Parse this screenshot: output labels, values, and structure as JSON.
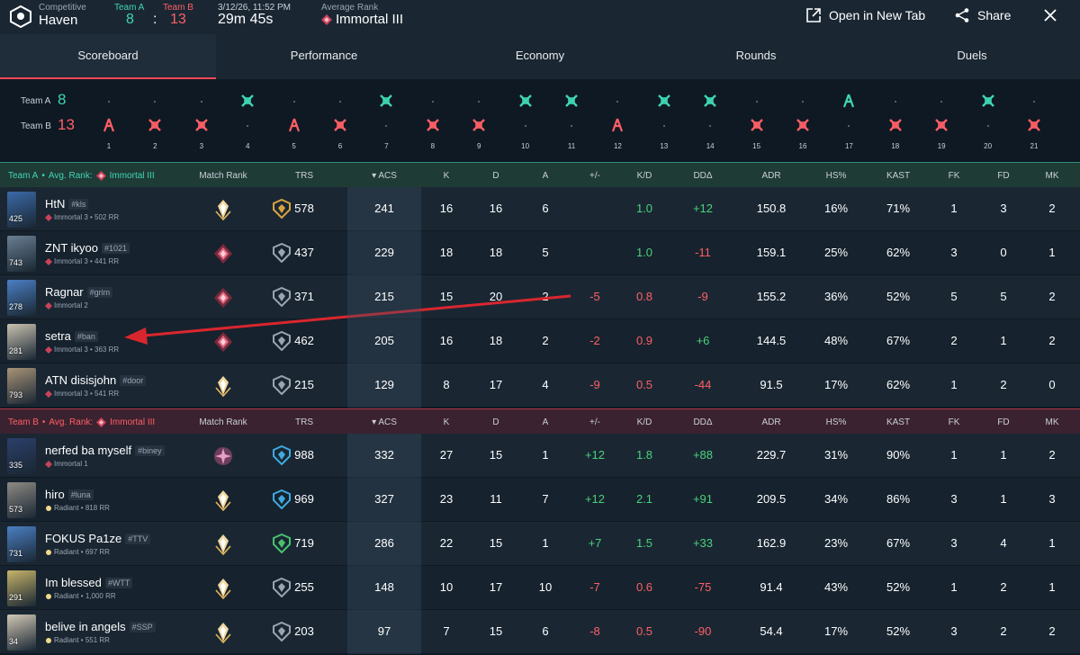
{
  "header": {
    "mode": "Competitive",
    "map": "Haven",
    "team_a_label": "Team A",
    "team_b_label": "Team B",
    "team_a_score": "8",
    "score_sep": ":",
    "team_b_score": "13",
    "datetime": "3/12/26, 11:52 PM",
    "duration": "29m 45s",
    "avg_rank_label": "Average Rank",
    "avg_rank": "Immortal III",
    "open_new_tab": "Open in New Tab",
    "share": "Share"
  },
  "tabs": [
    "Scoreboard",
    "Performance",
    "Economy",
    "Rounds",
    "Duels"
  ],
  "timeline": {
    "team_a_label": "Team A",
    "team_a_score": "8",
    "team_b_label": "Team B",
    "team_b_score": "13",
    "rounds": [
      {
        "n": "1",
        "winner": "B",
        "type": "spike"
      },
      {
        "n": "2",
        "winner": "B",
        "type": "elim"
      },
      {
        "n": "3",
        "winner": "B",
        "type": "elim"
      },
      {
        "n": "4",
        "winner": "A",
        "type": "elim"
      },
      {
        "n": "5",
        "winner": "B",
        "type": "spike"
      },
      {
        "n": "6",
        "winner": "B",
        "type": "elim"
      },
      {
        "n": "7",
        "winner": "A",
        "type": "elim"
      },
      {
        "n": "8",
        "winner": "B",
        "type": "elim"
      },
      {
        "n": "9",
        "winner": "B",
        "type": "elim"
      },
      {
        "n": "10",
        "winner": "A",
        "type": "elim"
      },
      {
        "n": "11",
        "winner": "A",
        "type": "elim"
      },
      {
        "n": "12",
        "winner": "B",
        "type": "spike"
      },
      {
        "n": "13",
        "winner": "A",
        "type": "elim"
      },
      {
        "n": "14",
        "winner": "A",
        "type": "elim"
      },
      {
        "n": "15",
        "winner": "B",
        "type": "elim"
      },
      {
        "n": "16",
        "winner": "B",
        "type": "elim"
      },
      {
        "n": "17",
        "winner": "A",
        "type": "spike"
      },
      {
        "n": "18",
        "winner": "B",
        "type": "elim"
      },
      {
        "n": "19",
        "winner": "B",
        "type": "elim"
      },
      {
        "n": "20",
        "winner": "A",
        "type": "elim"
      },
      {
        "n": "21",
        "winner": "B",
        "type": "elim"
      }
    ]
  },
  "columns": [
    "Match Rank",
    "TRS",
    "ACS",
    "K",
    "D",
    "A",
    "+/-",
    "K/D",
    "DDΔ",
    "ADR",
    "HS%",
    "KAST",
    "FK",
    "FD",
    "MK"
  ],
  "team_a": {
    "label": "Team A",
    "bullet": "•",
    "avg_rank_text": "Avg. Rank:",
    "avg_rank": "Immortal III",
    "accent": "#3fd6b4",
    "players": [
      {
        "avatar_num": "425",
        "name": "HtN",
        "tag": "#kls",
        "rank": "Immortal 3 • 502 RR",
        "rank_icon": "immortal",
        "match_rank_icon": "gold-emblem",
        "trs_icon": "gold-shield",
        "trs": "578",
        "acs": "241",
        "k": "16",
        "d": "16",
        "a": "6",
        "pm": "",
        "kd": "1.0",
        "ddd": "+12",
        "adr": "150.8",
        "hs": "16%",
        "kast": "71%",
        "fk": "1",
        "fd": "3",
        "mk": "2",
        "avatar_color": "#3b6aa8"
      },
      {
        "avatar_num": "743",
        "name": "ZNT ikyoo",
        "tag": "#1021",
        "rank": "Immortal 3 • 441 RR",
        "rank_icon": "immortal",
        "match_rank_icon": "red-diamond",
        "trs_icon": "grey-shield",
        "trs": "437",
        "acs": "229",
        "k": "18",
        "d": "18",
        "a": "5",
        "pm": "",
        "kd": "1.0",
        "ddd": "-11",
        "adr": "159.1",
        "hs": "25%",
        "kast": "62%",
        "fk": "3",
        "fd": "0",
        "mk": "1",
        "avatar_color": "#6a7f92"
      },
      {
        "avatar_num": "278",
        "name": "Ragnar",
        "tag": "#grim",
        "rank": "Immortal 2",
        "rank_icon": "immortal",
        "match_rank_icon": "red-diamond",
        "trs_icon": "grey-shield",
        "trs": "371",
        "acs": "215",
        "k": "15",
        "d": "20",
        "a": "2",
        "pm": "-5",
        "kd": "0.8",
        "ddd": "-9",
        "adr": "155.2",
        "hs": "36%",
        "kast": "52%",
        "fk": "5",
        "fd": "5",
        "mk": "2",
        "avatar_color": "#4b7fc4"
      },
      {
        "avatar_num": "281",
        "name": "setra",
        "tag": "#ban",
        "rank": "Immortal 3 • 363 RR",
        "rank_icon": "immortal",
        "match_rank_icon": "red-diamond",
        "trs_icon": "grey-shield",
        "trs": "462",
        "acs": "205",
        "k": "16",
        "d": "18",
        "a": "2",
        "pm": "-2",
        "kd": "0.9",
        "ddd": "+6",
        "adr": "144.5",
        "hs": "48%",
        "kast": "67%",
        "fk": "2",
        "fd": "1",
        "mk": "2",
        "avatar_color": "#c9c2b0"
      },
      {
        "avatar_num": "793",
        "name": "ATN disisjohn",
        "tag": "#door",
        "rank": "Immortal 3 • 541 RR",
        "rank_icon": "immortal",
        "match_rank_icon": "gold-emblem",
        "trs_icon": "grey-shield",
        "trs": "215",
        "acs": "129",
        "k": "8",
        "d": "17",
        "a": "4",
        "pm": "-9",
        "kd": "0.5",
        "ddd": "-44",
        "adr": "91.5",
        "hs": "17%",
        "kast": "62%",
        "fk": "1",
        "fd": "2",
        "mk": "0",
        "avatar_color": "#a89378"
      }
    ]
  },
  "team_b": {
    "label": "Team B",
    "bullet": "•",
    "avg_rank_text": "Avg. Rank:",
    "avg_rank": "Immortal III",
    "accent": "#ff5f66",
    "players": [
      {
        "avatar_num": "335",
        "name": "nerfed ba myself",
        "tag": "#biney",
        "rank": "Immortal 1",
        "rank_icon": "immortal",
        "match_rank_icon": "pink-star",
        "trs_icon": "blue-shield",
        "trs": "988",
        "acs": "332",
        "k": "27",
        "d": "15",
        "a": "1",
        "pm": "+12",
        "kd": "1.8",
        "ddd": "+88",
        "adr": "229.7",
        "hs": "31%",
        "kast": "90%",
        "fk": "1",
        "fd": "1",
        "mk": "2",
        "avatar_color": "#2c3f6a"
      },
      {
        "avatar_num": "573",
        "name": "hiro",
        "tag": "#luna",
        "rank": "Radiant • 818 RR",
        "rank_icon": "radiant",
        "match_rank_icon": "gold-emblem",
        "trs_icon": "blue-shield",
        "trs": "969",
        "acs": "327",
        "k": "23",
        "d": "11",
        "a": "7",
        "pm": "+12",
        "kd": "2.1",
        "ddd": "+91",
        "adr": "209.5",
        "hs": "34%",
        "kast": "86%",
        "fk": "3",
        "fd": "1",
        "mk": "3",
        "avatar_color": "#8e8a84"
      },
      {
        "avatar_num": "731",
        "name": "FOKUS Pa1ze",
        "tag": "#TTV",
        "rank": "Radiant • 697 RR",
        "rank_icon": "radiant",
        "match_rank_icon": "gold-emblem",
        "trs_icon": "green-shield",
        "trs": "719",
        "acs": "286",
        "k": "22",
        "d": "15",
        "a": "1",
        "pm": "+7",
        "kd": "1.5",
        "ddd": "+33",
        "adr": "162.9",
        "hs": "23%",
        "kast": "67%",
        "fk": "3",
        "fd": "4",
        "mk": "1",
        "avatar_color": "#4b7fc4"
      },
      {
        "avatar_num": "291",
        "name": "Im blessed",
        "tag": "#WTT",
        "rank": "Radiant • 1,000 RR",
        "rank_icon": "radiant",
        "match_rank_icon": "gold-emblem",
        "trs_icon": "grey-shield",
        "trs": "255",
        "acs": "148",
        "k": "10",
        "d": "17",
        "a": "10",
        "pm": "-7",
        "kd": "0.6",
        "ddd": "-75",
        "adr": "91.4",
        "hs": "43%",
        "kast": "52%",
        "fk": "1",
        "fd": "2",
        "mk": "1",
        "avatar_color": "#c7b46a"
      },
      {
        "avatar_num": "34",
        "name": "belive in angels",
        "tag": "#SSP",
        "rank": "Radiant • 551 RR",
        "rank_icon": "radiant",
        "match_rank_icon": "gold-emblem",
        "trs_icon": "grey-shield",
        "trs": "203",
        "acs": "97",
        "k": "7",
        "d": "15",
        "a": "6",
        "pm": "-8",
        "kd": "0.5",
        "ddd": "-90",
        "adr": "54.4",
        "hs": "17%",
        "kast": "52%",
        "fk": "3",
        "fd": "2",
        "mk": "2",
        "avatar_color": "#d2c8b5"
      }
    ]
  },
  "colors": {
    "teal": "#3fd6b4",
    "red": "#ff5f66",
    "positive": "#4ad27a",
    "annotation_arrow": "#d9262e"
  }
}
